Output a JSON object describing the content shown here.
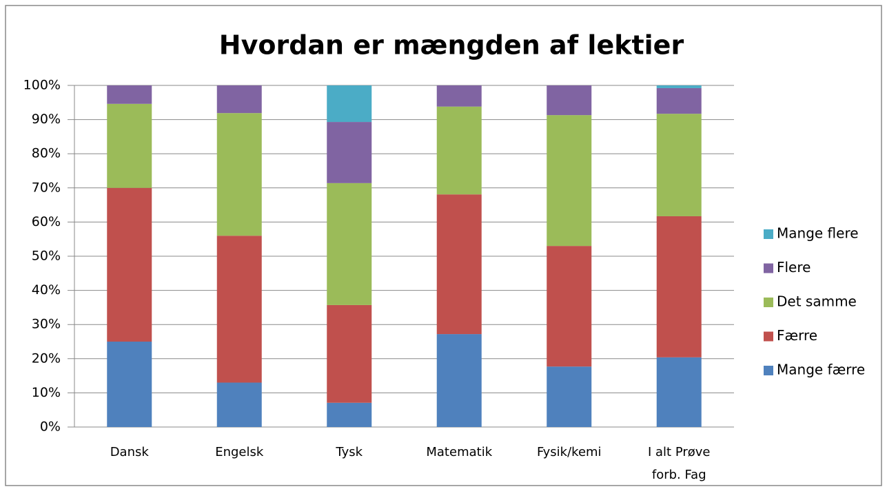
{
  "chart_data": {
    "type": "stacked_bar",
    "title": "Hvordan er mængden af lektier",
    "categories": [
      "Dansk",
      "Engelsk",
      "Tysk",
      "Matematik",
      "Fysik/kemi",
      "I alt Prøve forb. Fag"
    ],
    "series": [
      {
        "name": "Mange færre",
        "color": "#4f81bd",
        "values": [
          25,
          13,
          7.1,
          27.2,
          17.7,
          20.4
        ]
      },
      {
        "name": "Færre",
        "color": "#c0504d",
        "values": [
          45,
          43,
          28.6,
          40.9,
          35.3,
          41.3
        ]
      },
      {
        "name": "Det samme",
        "color": "#9bbb59",
        "values": [
          24.6,
          35.9,
          35.7,
          25.7,
          38.3,
          30
        ]
      },
      {
        "name": "Flere",
        "color": "#8064a2",
        "values": [
          5.4,
          8.1,
          17.9,
          6.2,
          8.7,
          7.5
        ]
      },
      {
        "name": "Mange flere",
        "color": "#4bacc6",
        "values": [
          0,
          0,
          10.7,
          0,
          0,
          0.8
        ]
      }
    ],
    "ylim": [
      0,
      100
    ],
    "yticks": [
      {
        "value": 0,
        "label": "0%"
      },
      {
        "value": 10,
        "label": "10%"
      },
      {
        "value": 20,
        "label": "20%"
      },
      {
        "value": 30,
        "label": "30%"
      },
      {
        "value": 40,
        "label": "40%"
      },
      {
        "value": 50,
        "label": "50%"
      },
      {
        "value": 60,
        "label": "60%"
      },
      {
        "value": 70,
        "label": "70%"
      },
      {
        "value": 80,
        "label": "80%"
      },
      {
        "value": 90,
        "label": "90%"
      },
      {
        "value": 100,
        "label": "100%"
      }
    ],
    "grid": true,
    "legend": "right"
  }
}
